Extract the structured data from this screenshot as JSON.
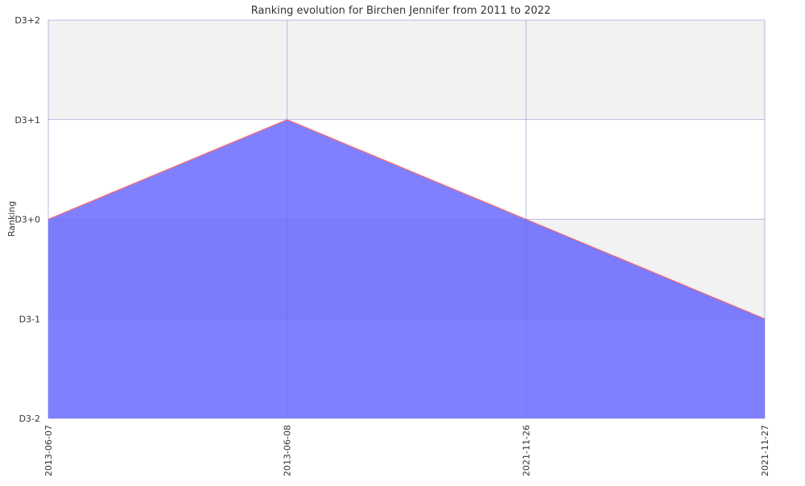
{
  "chart_data": {
    "type": "area",
    "title": "Ranking evolution for Birchen Jennifer from 2011 to 2022",
    "xlabel": "",
    "ylabel": "Ranking",
    "categories": [
      "2013-06-07",
      "2013-06-08",
      "2021-11-26",
      "2021-11-27"
    ],
    "y_ticks": [
      "D3-2",
      "D3-1",
      "D3+0",
      "D3+1",
      "D3+2"
    ],
    "ylim": [
      -2,
      2
    ],
    "series": [
      {
        "values": [
          0,
          1,
          0,
          -1
        ],
        "fill_color": "#8080ff",
        "line_color": "#ff6b6b"
      }
    ],
    "grid": true,
    "band_color": "#f2f2f2",
    "grid_color": "#cfcfcf",
    "text_color": "#333333"
  }
}
